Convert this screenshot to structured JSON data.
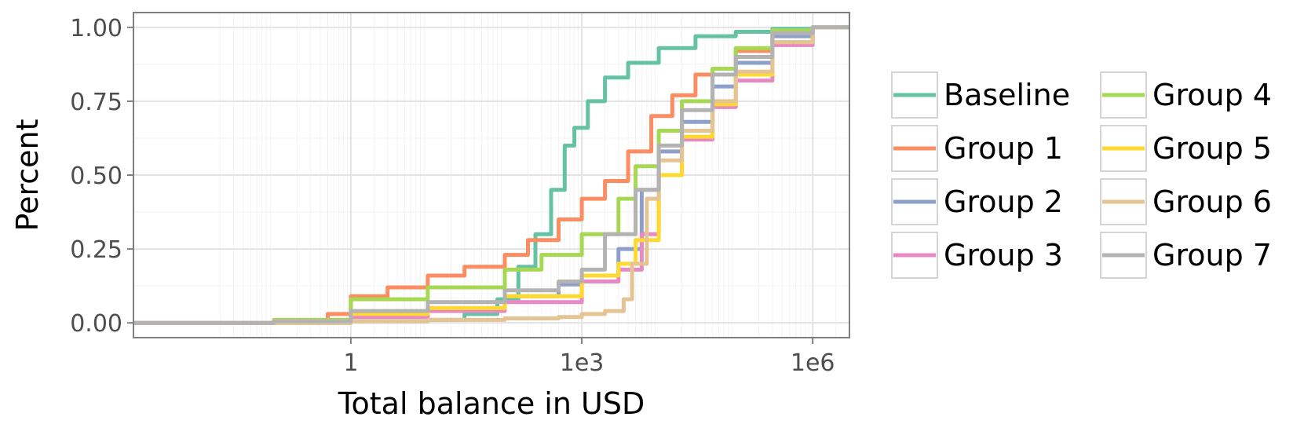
{
  "chart_data": {
    "type": "line",
    "title": "",
    "xlabel": "Total balance in USD",
    "ylabel": "Percent",
    "x_scale": "log10",
    "xlim": [
      0.0015,
      3000000
    ],
    "ylim": [
      -0.05,
      1.05
    ],
    "x_ticks": [
      {
        "value": 1,
        "label": "1"
      },
      {
        "value": 1000,
        "label": "1e3"
      },
      {
        "value": 1000000,
        "label": "1e6"
      }
    ],
    "y_ticks": [
      {
        "value": 0.0,
        "label": "0.00"
      },
      {
        "value": 0.25,
        "label": "0.25"
      },
      {
        "value": 0.5,
        "label": "0.50"
      },
      {
        "value": 0.75,
        "label": "0.75"
      },
      {
        "value": 1.0,
        "label": "1.00"
      }
    ],
    "grid": true,
    "legend_position": "right",
    "series": [
      {
        "name": "Baseline",
        "color": "#66c2a5",
        "x": [
          0.0015,
          0.1,
          1,
          10,
          30,
          80,
          150,
          250,
          400,
          600,
          800,
          1200,
          2000,
          4000,
          10000,
          30000,
          100000,
          300000,
          1000000
        ],
        "y": [
          0.0,
          0.0,
          0.005,
          0.01,
          0.03,
          0.08,
          0.19,
          0.3,
          0.45,
          0.6,
          0.66,
          0.75,
          0.83,
          0.88,
          0.93,
          0.97,
          0.985,
          0.995,
          1.0
        ]
      },
      {
        "name": "Group 1",
        "color": "#fc8d62",
        "x": [
          0.0015,
          0.1,
          0.5,
          1,
          3,
          10,
          30,
          100,
          200,
          500,
          1000,
          2000,
          4000,
          8000,
          15000,
          30000,
          100000,
          300000,
          1000000
        ],
        "y": [
          0.0,
          0.005,
          0.03,
          0.09,
          0.12,
          0.16,
          0.19,
          0.23,
          0.28,
          0.35,
          0.42,
          0.48,
          0.58,
          0.7,
          0.77,
          0.84,
          0.92,
          0.98,
          1.0
        ]
      },
      {
        "name": "Group 2",
        "color": "#8da0cb",
        "x": [
          0.0015,
          0.1,
          1,
          10,
          100,
          500,
          1000,
          3000,
          6000,
          10000,
          20000,
          50000,
          100000,
          300000,
          1000000
        ],
        "y": [
          0.0,
          0.005,
          0.03,
          0.05,
          0.09,
          0.13,
          0.16,
          0.25,
          0.45,
          0.58,
          0.68,
          0.8,
          0.88,
          0.97,
          1.0
        ]
      },
      {
        "name": "Group 3",
        "color": "#e78ac3",
        "x": [
          0.0015,
          0.1,
          1,
          10,
          100,
          1000,
          3000,
          6000,
          10000,
          20000,
          50000,
          100000,
          300000,
          1000000
        ],
        "y": [
          0.0,
          0.003,
          0.02,
          0.04,
          0.07,
          0.14,
          0.18,
          0.3,
          0.5,
          0.62,
          0.73,
          0.82,
          0.94,
          1.0
        ]
      },
      {
        "name": "Group 4",
        "color": "#a6d854",
        "x": [
          0.0015,
          0.1,
          1,
          10,
          100,
          300,
          1000,
          3000,
          5000,
          10000,
          20000,
          50000,
          100000,
          300000,
          1000000
        ],
        "y": [
          0.0,
          0.01,
          0.08,
          0.12,
          0.18,
          0.23,
          0.3,
          0.42,
          0.53,
          0.65,
          0.75,
          0.86,
          0.93,
          0.99,
          1.0
        ]
      },
      {
        "name": "Group 5",
        "color": "#ffd92f",
        "x": [
          0.0015,
          0.1,
          1,
          10,
          100,
          1000,
          3000,
          5000,
          10000,
          20000,
          50000,
          100000,
          300000,
          1000000
        ],
        "y": [
          0.0,
          0.005,
          0.03,
          0.05,
          0.09,
          0.16,
          0.2,
          0.28,
          0.5,
          0.63,
          0.74,
          0.84,
          0.95,
          1.0
        ]
      },
      {
        "name": "Group 6",
        "color": "#e5c494",
        "x": [
          0.0015,
          1,
          10,
          100,
          500,
          1000,
          2000,
          3500,
          4500,
          7000,
          10000,
          20000,
          50000,
          100000,
          300000,
          1000000
        ],
        "y": [
          0.0,
          0.005,
          0.01,
          0.015,
          0.02,
          0.03,
          0.04,
          0.08,
          0.2,
          0.42,
          0.55,
          0.65,
          0.75,
          0.85,
          0.95,
          1.0
        ]
      },
      {
        "name": "Group 7",
        "color": "#b3b3b3",
        "x": [
          0.0015,
          0.1,
          1,
          10,
          100,
          500,
          1000,
          2000,
          5000,
          10000,
          20000,
          50000,
          100000,
          300000,
          1000000
        ],
        "y": [
          0.0,
          0.005,
          0.04,
          0.07,
          0.11,
          0.14,
          0.18,
          0.3,
          0.45,
          0.6,
          0.72,
          0.84,
          0.9,
          0.98,
          1.0
        ]
      }
    ]
  }
}
